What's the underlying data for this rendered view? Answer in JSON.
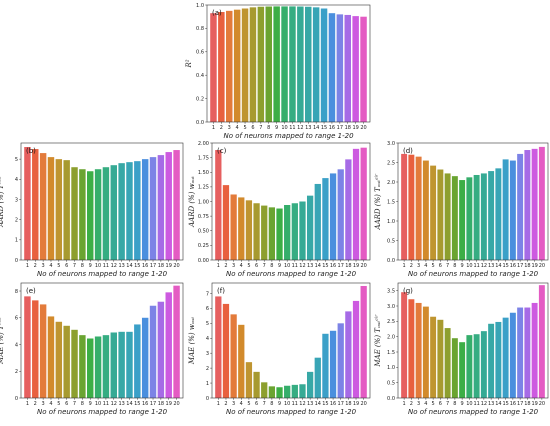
{
  "chart_data": [
    {
      "type": "bar",
      "panel_label": "(a)",
      "categories": [
        "1",
        "2",
        "3",
        "4",
        "5",
        "6",
        "7",
        "8",
        "9",
        "10",
        "11",
        "12",
        "13",
        "14",
        "15",
        "16",
        "17",
        "18",
        "19",
        "20"
      ],
      "values": [
        0.93,
        0.94,
        0.95,
        0.96,
        0.97,
        0.98,
        0.985,
        0.987,
        0.988,
        0.988,
        0.988,
        0.987,
        0.985,
        0.98,
        0.97,
        0.93,
        0.92,
        0.915,
        0.905,
        0.9
      ],
      "xlabel": "No of neurons mapped to range 1-20",
      "ylabel": "R²",
      "ylim": [
        0,
        1.0
      ],
      "yticks": [
        "0.0",
        "0.2",
        "0.4",
        "0.6",
        "0.8",
        "1.0"
      ],
      "ytick_values": [
        0,
        0.2,
        0.4,
        0.6,
        0.8,
        1.0
      ]
    },
    {
      "type": "bar",
      "panel_label": "(b)",
      "categories": [
        "1",
        "2",
        "3",
        "4",
        "5",
        "6",
        "7",
        "8",
        "9",
        "10",
        "11",
        "12",
        "13",
        "14",
        "15",
        "16",
        "17",
        "18",
        "19",
        "20"
      ],
      "values": [
        5.6,
        5.5,
        5.3,
        5.1,
        5.0,
        4.95,
        4.6,
        4.5,
        4.4,
        4.5,
        4.6,
        4.7,
        4.8,
        4.85,
        4.9,
        5.0,
        5.1,
        5.2,
        5.35,
        5.45
      ],
      "xlabel": "No of neurons mapped to range 1-20",
      "ylabel": "AARD (%) Tᵉᵈᵇ",
      "ylim": [
        0,
        5.8
      ],
      "yticks": [
        "0",
        "1",
        "2",
        "3",
        "4",
        "5"
      ],
      "ytick_values": [
        0,
        1,
        2,
        3,
        4,
        5
      ]
    },
    {
      "type": "bar",
      "panel_label": "(c)",
      "categories": [
        "1",
        "2",
        "3",
        "4",
        "5",
        "6",
        "7",
        "8",
        "9",
        "10",
        "11",
        "12",
        "13",
        "14",
        "15",
        "16",
        "17",
        "18",
        "19",
        "20"
      ],
      "values": [
        1.88,
        1.28,
        1.12,
        1.07,
        1.02,
        0.97,
        0.93,
        0.9,
        0.88,
        0.94,
        0.97,
        1.0,
        1.1,
        1.3,
        1.4,
        1.48,
        1.55,
        1.72,
        1.9,
        1.92
      ],
      "xlabel": "No of neurons mapped to range 1-20",
      "ylabel": "AARD (%) wₒᵤₜ",
      "ylim": [
        0,
        2.0
      ],
      "yticks": [
        "0.00",
        "0.25",
        "0.50",
        "0.75",
        "1.00",
        "1.25",
        "1.50",
        "1.75",
        "2.00"
      ],
      "ytick_values": [
        0,
        0.25,
        0.5,
        0.75,
        1.0,
        1.25,
        1.5,
        1.75,
        2.0
      ]
    },
    {
      "type": "bar",
      "panel_label": "(d)",
      "categories": [
        "1",
        "2",
        "3",
        "4",
        "5",
        "6",
        "7",
        "8",
        "9",
        "10",
        "11",
        "12",
        "13",
        "14",
        "15",
        "16",
        "17",
        "18",
        "19",
        "20"
      ],
      "values": [
        2.72,
        2.7,
        2.65,
        2.55,
        2.42,
        2.32,
        2.22,
        2.15,
        2.05,
        2.12,
        2.18,
        2.22,
        2.28,
        2.35,
        2.58,
        2.55,
        2.72,
        2.82,
        2.85,
        2.9
      ],
      "xlabel": "No of neurons mapped to range 1-20",
      "ylabel": "AARD (%) Tₒᵤₜᵃⁱʳ",
      "ylim": [
        0,
        3.0
      ],
      "yticks": [
        "0.0",
        "0.5",
        "1.0",
        "1.5",
        "2.0",
        "2.5",
        "3.0"
      ],
      "ytick_values": [
        0,
        0.5,
        1.0,
        1.5,
        2.0,
        2.5,
        3.0
      ]
    },
    {
      "type": "bar",
      "panel_label": "(e)",
      "categories": [
        "1",
        "2",
        "3",
        "4",
        "5",
        "6",
        "7",
        "8",
        "9",
        "10",
        "11",
        "12",
        "13",
        "14",
        "15",
        "16",
        "17",
        "18",
        "19",
        "20"
      ],
      "values": [
        7.6,
        7.3,
        7.0,
        6.1,
        5.7,
        5.4,
        5.1,
        4.7,
        4.45,
        4.6,
        4.7,
        4.9,
        4.95,
        4.95,
        5.5,
        6.0,
        6.9,
        7.2,
        7.9,
        8.4
      ],
      "xlabel": "No of neurons mapped to range 1-20",
      "ylabel": "MAE (%) Tᵉᵈᵇ",
      "ylim": [
        0,
        8.6
      ],
      "yticks": [
        "0",
        "2",
        "4",
        "6",
        "8"
      ],
      "ytick_values": [
        0,
        2,
        4,
        6,
        8
      ]
    },
    {
      "type": "bar",
      "panel_label": "(f)",
      "categories": [
        "1",
        "2",
        "3",
        "4",
        "5",
        "6",
        "7",
        "8",
        "9",
        "10",
        "11",
        "12",
        "13",
        "14",
        "15",
        "16",
        "17",
        "18",
        "19",
        "20"
      ],
      "values": [
        6.8,
        6.3,
        5.6,
        4.9,
        2.4,
        1.75,
        1.05,
        0.78,
        0.72,
        0.82,
        0.88,
        0.92,
        1.75,
        2.7,
        4.3,
        4.5,
        5.0,
        5.8,
        6.5,
        7.5
      ],
      "xlabel": "No of neurons mapped to range 1-20",
      "ylabel": "MAE (%) wₒᵤₜ",
      "ylim": [
        0,
        7.7
      ],
      "yticks": [
        "0",
        "1",
        "2",
        "3",
        "4",
        "5",
        "6",
        "7"
      ],
      "ytick_values": [
        0,
        1,
        2,
        3,
        4,
        5,
        6,
        7
      ]
    },
    {
      "type": "bar",
      "panel_label": "(g)",
      "categories": [
        "1",
        "2",
        "3",
        "4",
        "5",
        "6",
        "7",
        "8",
        "9",
        "10",
        "11",
        "12",
        "13",
        "14",
        "15",
        "16",
        "17",
        "18",
        "19",
        "20"
      ],
      "values": [
        3.45,
        3.22,
        3.1,
        2.98,
        2.65,
        2.55,
        2.28,
        1.95,
        1.82,
        2.05,
        2.08,
        2.18,
        2.42,
        2.48,
        2.62,
        2.78,
        2.95,
        2.95,
        3.1,
        3.68
      ],
      "xlabel": "No of neurons mapped to range 1-20",
      "ylabel": "MAE (%) Tₒᵤₜᵃⁱʳ",
      "ylim": [
        0,
        3.75
      ],
      "yticks": [
        "0.0",
        "0.5",
        "1.0",
        "1.5",
        "2.0",
        "2.5",
        "3.0",
        "3.5"
      ],
      "ytick_values": [
        0,
        0.5,
        1.0,
        1.5,
        2.0,
        2.5,
        3.0,
        3.5
      ]
    }
  ],
  "colors": {
    "bars": [
      "#e65f5f",
      "#e8603f",
      "#e37b3b",
      "#d28a2c",
      "#bf9530",
      "#a79a2f",
      "#8d9f2e",
      "#6aa431",
      "#3cae46",
      "#35ae6b",
      "#36ad82",
      "#36aa95",
      "#37a8a6",
      "#38a5b6",
      "#3ba0c8",
      "#4a8fde",
      "#7c83e6",
      "#a66be6",
      "#cd5ae0",
      "#e45bc3"
    ]
  }
}
